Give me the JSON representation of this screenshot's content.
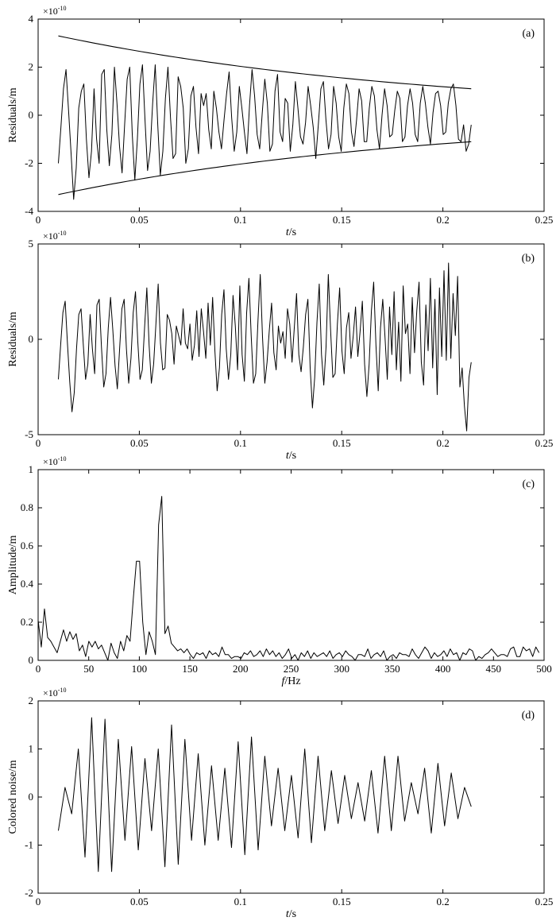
{
  "chart_data": [
    {
      "type": "line",
      "panel_label": "(a)",
      "exponent": {
        "base": "×10",
        "power": "-10"
      },
      "ylabel": "Residuals/m",
      "xlabel": {
        "var": "t",
        "unit": "/s"
      },
      "xlim": [
        0,
        0.25
      ],
      "ylim": [
        -4,
        4
      ],
      "xticks": [
        0,
        0.05,
        0.1,
        0.15,
        0.2,
        0.25
      ],
      "xtick_labels": [
        "0",
        "0.05",
        "0.1",
        "0.15",
        "0.2",
        "0.25"
      ],
      "yticks": [
        -4,
        -2,
        0,
        2,
        4
      ],
      "ytick_labels": [
        "-4",
        "-2",
        "0",
        "2",
        "4"
      ],
      "envelope": {
        "x_range": [
          0.01,
          0.214
        ],
        "upper": [
          3.3,
          1.1
        ],
        "lower": [
          -3.3,
          -1.1
        ]
      },
      "series": [
        {
          "x_range": [
            0.01,
            0.214
          ],
          "values": [
            -2.0,
            -0.5,
            1.1,
            1.9,
            0.2,
            -1.6,
            -3.5,
            -2.2,
            0.3,
            1.0,
            1.3,
            -1.0,
            -2.6,
            -1.5,
            1.1,
            -1.0,
            -2.0,
            1.7,
            1.9,
            -0.6,
            -2.1,
            -0.8,
            2.0,
            0.5,
            -1.3,
            -2.4,
            -0.4,
            1.5,
            2.0,
            -0.8,
            -2.7,
            -1.0,
            1.3,
            2.1,
            -0.2,
            -2.3,
            -1.5,
            0.5,
            2.1,
            -0.4,
            -2.5,
            -1.5,
            0.7,
            2.0,
            -0.1,
            -1.8,
            -1.6,
            1.6,
            1.2,
            0.3,
            -2.0,
            -1.4,
            0.8,
            1.2,
            -0.5,
            -1.6,
            0.9,
            0.4,
            0.9,
            -0.6,
            -1.4,
            1.0,
            0.3,
            -0.7,
            -1.4,
            -0.2,
            0.9,
            1.8,
            -0.1,
            -1.5,
            -0.7,
            1.2,
            0.3,
            -0.7,
            -1.6,
            0.4,
            1.9,
            0.8,
            -0.8,
            -1.4,
            0.1,
            1.5,
            0.5,
            -1.5,
            -1.2,
            1.0,
            1.7,
            -0.7,
            -1.1,
            0.7,
            0.5,
            -1.5,
            -0.4,
            1.4,
            0.3,
            -0.9,
            -1.2,
            -0.3,
            1.2,
            0.4,
            -0.5,
            -1.8,
            -0.4,
            1.1,
            1.4,
            -0.2,
            -1.4,
            -0.8,
            1.2,
            0.5,
            -0.9,
            -1.5,
            0.3,
            1.3,
            0.9,
            -0.7,
            -1.3,
            -0.2,
            1.1,
            0.6,
            -1.1,
            -1.1,
            0.3,
            1.2,
            0.8,
            -0.6,
            -1.4,
            0.0,
            1.1,
            0.4,
            -0.9,
            -0.8,
            0.2,
            1.0,
            0.7,
            -1.1,
            -0.9,
            0.4,
            1.1,
            0.5,
            -0.8,
            -1.1,
            0.5,
            1.2,
            0.5,
            -0.5,
            -1.2,
            0.1,
            0.9,
            1.0,
            0.4,
            -0.8,
            -0.7,
            0.5,
            1.1,
            1.3,
            0.4,
            -1.0,
            -1.1,
            -0.4,
            -1.5,
            -1.2,
            -0.4
          ]
        }
      ]
    },
    {
      "type": "line",
      "panel_label": "(b)",
      "exponent": {
        "base": "×10",
        "power": "-10"
      },
      "ylabel": "Residuals/m",
      "xlabel": {
        "var": "t",
        "unit": "/s"
      },
      "xlim": [
        0,
        0.25
      ],
      "ylim": [
        -5,
        5
      ],
      "xticks": [
        0,
        0.05,
        0.1,
        0.15,
        0.2,
        0.25
      ],
      "xtick_labels": [
        "0",
        "0.05",
        "0.1",
        "0.15",
        "0.2",
        "0.25"
      ],
      "yticks": [
        -5,
        0,
        5
      ],
      "ytick_labels": [
        "-5",
        "0",
        "5"
      ],
      "series": [
        {
          "x_range": [
            0.01,
            0.214
          ],
          "values": [
            -2.1,
            -0.3,
            1.4,
            2.0,
            -0.2,
            -2.2,
            -3.8,
            -2.8,
            -0.5,
            1.3,
            1.6,
            -0.3,
            -2.1,
            -1.3,
            1.3,
            -0.5,
            -1.8,
            1.8,
            2.1,
            -0.4,
            -2.5,
            -1.8,
            0.6,
            2.2,
            0.5,
            -1.4,
            -2.6,
            -0.5,
            1.6,
            2.1,
            -0.5,
            -2.3,
            -1.0,
            1.4,
            2.5,
            -0.1,
            -2.1,
            -1.6,
            0.6,
            2.7,
            -0.3,
            -2.3,
            -1.3,
            0.8,
            2.9,
            -0.2,
            -1.6,
            -1.5,
            1.3,
            1.0,
            0.3,
            -1.3,
            0.7,
            0.2,
            -0.3,
            1.6,
            -0.2,
            -0.5,
            0.8,
            -1.1,
            -0.3,
            1.5,
            -0.9,
            1.6,
            0.4,
            -1.0,
            1.9,
            -0.3,
            2.2,
            -0.6,
            -2.7,
            -1.5,
            1.3,
            2.6,
            -0.5,
            -2.1,
            -0.8,
            2.3,
            0.7,
            -1.6,
            2.8,
            -0.8,
            -2.2,
            1.4,
            3.2,
            0.2,
            -2.3,
            -1.8,
            1.0,
            3.4,
            0.1,
            -2.3,
            -1.2,
            0.5,
            1.9,
            -0.7,
            -1.6,
            0.7,
            -0.2,
            0.4,
            -1.0,
            1.6,
            0.8,
            -1.2,
            0.6,
            2.4,
            -0.8,
            -1.7,
            -0.4,
            1.3,
            2.1,
            -1.5,
            -3.6,
            -2.0,
            0.9,
            2.9,
            -0.8,
            -2.4,
            -0.4,
            3.4,
            0.5,
            -2.0,
            -1.8,
            0.8,
            2.7,
            -0.6,
            -1.8,
            0.6,
            1.4,
            -1.0,
            0.2,
            1.7,
            -0.9,
            0.4,
            2.0,
            -1.3,
            -3.0,
            -1.3,
            1.5,
            3.0,
            -0.3,
            -2.7,
            0.6,
            2.1,
            0.1,
            -2.1,
            1.7,
            -0.8,
            2.5,
            -1.6,
            0.9,
            -2.2,
            2.8,
            0.3,
            0.8,
            -1.8,
            2.2,
            -0.7,
            1.5,
            3.0,
            -1.2,
            -2.4,
            1.8,
            -0.6,
            3.2,
            -1.5,
            2.1,
            -2.9,
            2.7,
            -0.9,
            3.6,
            -1.1,
            4.0,
            -1.0,
            2.4,
            0.2,
            3.3,
            -2.5,
            -1.5,
            -3.5,
            -4.8,
            -2.0,
            -1.2
          ]
        }
      ]
    },
    {
      "type": "line",
      "panel_label": "(c)",
      "exponent": {
        "base": "×10",
        "power": "-10"
      },
      "ylabel": "Amplitude/m",
      "xlabel": {
        "var": "f",
        "unit": "/Hz"
      },
      "xlim": [
        0,
        500
      ],
      "ylim": [
        0,
        1
      ],
      "xticks": [
        0,
        50,
        100,
        150,
        200,
        250,
        300,
        350,
        400,
        450,
        500
      ],
      "xtick_labels": [
        "0",
        "50",
        "100",
        "150",
        "200",
        "250",
        "300",
        "350",
        "400",
        "450",
        "500"
      ],
      "yticks": [
        0,
        0.2,
        0.4,
        0.6,
        0.8,
        1
      ],
      "ytick_labels": [
        "0",
        "0.2",
        "0.4",
        "0.6",
        "0.8",
        "1"
      ],
      "series": [
        {
          "x_range": [
            0,
            495
          ],
          "values": [
            0.21,
            0.07,
            0.27,
            0.12,
            0.1,
            0.07,
            0.04,
            0.1,
            0.16,
            0.1,
            0.15,
            0.11,
            0.14,
            0.05,
            0.08,
            0.02,
            0.1,
            0.07,
            0.1,
            0.06,
            0.08,
            0.04,
            0.0,
            0.09,
            0.04,
            0.01,
            0.1,
            0.05,
            0.13,
            0.1,
            0.32,
            0.52,
            0.52,
            0.2,
            0.03,
            0.15,
            0.1,
            0.03,
            0.71,
            0.86,
            0.14,
            0.18,
            0.09,
            0.07,
            0.05,
            0.06,
            0.04,
            0.06,
            0.03,
            0.01,
            0.04,
            0.03,
            0.04,
            0.01,
            0.05,
            0.03,
            0.04,
            0.02,
            0.07,
            0.03,
            0.03,
            0.01,
            0.02,
            0.02,
            0.01,
            0.04,
            0.03,
            0.05,
            0.02,
            0.03,
            0.05,
            0.02,
            0.06,
            0.03,
            0.05,
            0.02,
            0.04,
            0.01,
            0.03,
            0.06,
            0.01,
            0.03,
            0.0,
            0.04,
            0.02,
            0.05,
            0.01,
            0.04,
            0.02,
            0.03,
            0.04,
            0.02,
            0.05,
            0.01,
            0.03,
            0.04,
            0.02,
            0.05,
            0.03,
            0.02,
            0.0,
            0.03,
            0.03,
            0.02,
            0.06,
            0.01,
            0.03,
            0.04,
            0.02,
            0.05,
            0.0,
            0.02,
            0.03,
            0.01,
            0.04,
            0.03,
            0.03,
            0.02,
            0.06,
            0.03,
            0.01,
            0.04,
            0.07,
            0.05,
            0.01,
            0.04,
            0.02,
            0.03,
            0.05,
            0.02,
            0.06,
            0.03,
            0.04,
            0.0,
            0.04,
            0.03,
            0.06,
            0.05,
            0.0,
            0.02,
            0.01,
            0.03,
            0.04,
            0.06,
            0.04,
            0.02,
            0.03,
            0.03,
            0.02,
            0.06,
            0.07,
            0.02,
            0.02,
            0.07,
            0.05,
            0.06,
            0.02,
            0.07,
            0.04
          ]
        }
      ]
    },
    {
      "type": "line",
      "panel_label": "(d)",
      "exponent": {
        "base": "×10",
        "power": "-10"
      },
      "ylabel": "Colored noise/m",
      "xlabel": {
        "var": "t",
        "unit": "/s"
      },
      "xlim": [
        0,
        0.25
      ],
      "ylim": [
        -2,
        2
      ],
      "xticks": [
        0,
        0.05,
        0.1,
        0.15,
        0.2,
        0.25
      ],
      "xtick_labels": [
        "0",
        "0.05",
        "0.1",
        "0.15",
        "0.2",
        "0.25"
      ],
      "yticks": [
        -2,
        -1,
        0,
        1,
        2
      ],
      "ytick_labels": [
        "-2",
        "-1",
        "0",
        "1",
        "2"
      ],
      "series": [
        {
          "x_range": [
            0.01,
            0.214
          ],
          "values": [
            -0.7,
            0.2,
            -0.35,
            1.0,
            -1.25,
            1.65,
            -1.55,
            1.62,
            -1.55,
            1.2,
            -0.9,
            1.05,
            -1.1,
            0.8,
            -0.7,
            1.0,
            -1.45,
            1.5,
            -1.4,
            1.2,
            -0.9,
            0.9,
            -1.0,
            0.65,
            -0.9,
            0.6,
            -1.05,
            1.15,
            -1.2,
            1.25,
            -1.1,
            0.85,
            -0.6,
            0.6,
            -0.7,
            0.45,
            -0.85,
            1.0,
            -0.95,
            0.85,
            -0.7,
            0.55,
            -0.55,
            0.45,
            -0.45,
            0.3,
            -0.5,
            0.55,
            -0.75,
            0.85,
            -0.7,
            0.85,
            -0.5,
            0.3,
            -0.35,
            0.6,
            -0.75,
            0.7,
            -0.6,
            0.5,
            -0.45,
            0.2,
            -0.2
          ]
        }
      ]
    }
  ]
}
